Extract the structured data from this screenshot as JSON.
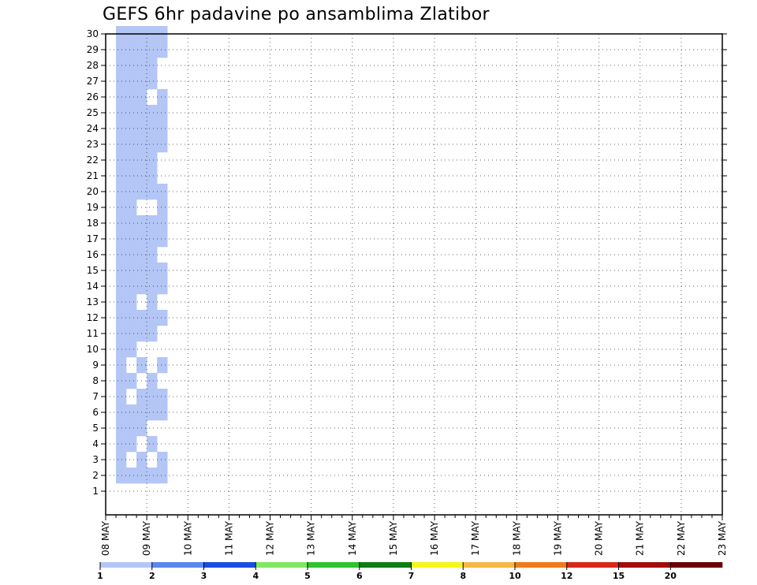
{
  "chart_data": {
    "type": "heatmap",
    "title": "GEFS 6hr padavine po ansamblima Zlatibor",
    "xlabel": "",
    "ylabel": "",
    "x_tick_labels": [
      "08 MAY",
      "09 MAY",
      "10 MAY",
      "11 MAY",
      "12 MAY",
      "13 MAY",
      "14 MAY",
      "15 MAY",
      "16 MAY",
      "17 MAY",
      "18 MAY",
      "19 MAY",
      "20 MAY",
      "21 MAY",
      "22 MAY",
      "23 MAY"
    ],
    "x_range_days": [
      0,
      15
    ],
    "steps_per_day": 4,
    "y_tick_labels": [
      1,
      2,
      3,
      4,
      5,
      6,
      7,
      8,
      9,
      10,
      11,
      12,
      13,
      14,
      15,
      16,
      17,
      18,
      19,
      20,
      21,
      22,
      23,
      24,
      25,
      26,
      27,
      28,
      29,
      30
    ],
    "grid": true,
    "legend_placement": "bottom",
    "color_levels": [
      1,
      2,
      3,
      4,
      5,
      6,
      7,
      8,
      10,
      12,
      15,
      20
    ],
    "colorbar_labels": [
      "1",
      "2",
      "3",
      "4",
      "5",
      "6",
      "7",
      "8",
      "10",
      "12",
      "15",
      "20"
    ],
    "colors": [
      "#b3c6f5",
      "#5b87ee",
      "#1a4de0",
      "#7fe860",
      "#2dc42d",
      "#0f7d14",
      "#f6f618",
      "#f6b845",
      "#f07b18",
      "#d82818",
      "#a00c0c",
      "#6a0000"
    ],
    "cells": [
      [
        0,
        1,
        2
      ],
      [
        0,
        1,
        3
      ],
      [
        0,
        1,
        4
      ],
      [
        0,
        1,
        5
      ],
      [
        0,
        1,
        6
      ],
      [
        0,
        1,
        7
      ],
      [
        0,
        1,
        8
      ],
      [
        0,
        1,
        9
      ],
      [
        0,
        1,
        10
      ],
      [
        0,
        1,
        11
      ],
      [
        0,
        1,
        12
      ],
      [
        0,
        1,
        13
      ],
      [
        0,
        1,
        14
      ],
      [
        0,
        1,
        15
      ],
      [
        0,
        1,
        16
      ],
      [
        0,
        1,
        17
      ],
      [
        0,
        1,
        18
      ],
      [
        0,
        1,
        19
      ],
      [
        0,
        1,
        20
      ],
      [
        0,
        1,
        21
      ],
      [
        0,
        1,
        22
      ],
      [
        0,
        1,
        23
      ],
      [
        0,
        1,
        24
      ],
      [
        0,
        1,
        25
      ],
      [
        0,
        1,
        26
      ],
      [
        0,
        1,
        27
      ],
      [
        0,
        1,
        28
      ],
      [
        0,
        1,
        29
      ],
      [
        0,
        1,
        30
      ],
      [
        0,
        2,
        2
      ],
      [
        0,
        2,
        4
      ],
      [
        0,
        2,
        5
      ],
      [
        0,
        2,
        6
      ],
      [
        0,
        2,
        8
      ],
      [
        0,
        2,
        10
      ],
      [
        0,
        2,
        11
      ],
      [
        0,
        2,
        12
      ],
      [
        0,
        2,
        13
      ],
      [
        0,
        2,
        14
      ],
      [
        0,
        2,
        15
      ],
      [
        0,
        2,
        16
      ],
      [
        0,
        2,
        17
      ],
      [
        0,
        2,
        18
      ],
      [
        0,
        2,
        19
      ],
      [
        0,
        2,
        20
      ],
      [
        0,
        2,
        21
      ],
      [
        0,
        2,
        22
      ],
      [
        0,
        2,
        23
      ],
      [
        0,
        2,
        24
      ],
      [
        0,
        2,
        25
      ],
      [
        0,
        2,
        26
      ],
      [
        0,
        2,
        27
      ],
      [
        0,
        2,
        28
      ],
      [
        0,
        2,
        29
      ],
      [
        0,
        2,
        30
      ],
      [
        0,
        3,
        2
      ],
      [
        0,
        3,
        3
      ],
      [
        0,
        3,
        5
      ],
      [
        0,
        3,
        6
      ],
      [
        0,
        3,
        7
      ],
      [
        0,
        3,
        9
      ],
      [
        0,
        3,
        11
      ],
      [
        0,
        3,
        12
      ],
      [
        0,
        3,
        14
      ],
      [
        0,
        3,
        15
      ],
      [
        0,
        3,
        16
      ],
      [
        0,
        3,
        17
      ],
      [
        0,
        3,
        18
      ],
      [
        0,
        3,
        20
      ],
      [
        0,
        3,
        21
      ],
      [
        0,
        3,
        22
      ],
      [
        0,
        3,
        23
      ],
      [
        0,
        3,
        24
      ],
      [
        0,
        3,
        25
      ],
      [
        0,
        3,
        26
      ],
      [
        0,
        3,
        27
      ],
      [
        0,
        3,
        28
      ],
      [
        0,
        3,
        29
      ],
      [
        0,
        3,
        30
      ],
      [
        0,
        4,
        2
      ],
      [
        0,
        4,
        4
      ],
      [
        0,
        4,
        6
      ],
      [
        0,
        4,
        7
      ],
      [
        0,
        4,
        8
      ],
      [
        0,
        4,
        11
      ],
      [
        0,
        4,
        12
      ],
      [
        0,
        4,
        13
      ],
      [
        0,
        4,
        14
      ],
      [
        0,
        4,
        15
      ],
      [
        0,
        4,
        16
      ],
      [
        0,
        4,
        17
      ],
      [
        0,
        4,
        18
      ],
      [
        0,
        4,
        20
      ],
      [
        0,
        4,
        21
      ],
      [
        0,
        4,
        22
      ],
      [
        0,
        4,
        23
      ],
      [
        0,
        4,
        24
      ],
      [
        0,
        4,
        25
      ],
      [
        0,
        4,
        27
      ],
      [
        0,
        4,
        28
      ],
      [
        0,
        4,
        29
      ],
      [
        0,
        4,
        30
      ],
      [
        0,
        5,
        2
      ],
      [
        0,
        5,
        3
      ],
      [
        0,
        5,
        6
      ],
      [
        0,
        5,
        7
      ],
      [
        0,
        5,
        9
      ],
      [
        0,
        5,
        12
      ],
      [
        0,
        5,
        14
      ],
      [
        0,
        5,
        15
      ],
      [
        0,
        5,
        17
      ],
      [
        0,
        5,
        18
      ],
      [
        0,
        5,
        19
      ],
      [
        0,
        5,
        20
      ],
      [
        0,
        5,
        23
      ],
      [
        0,
        5,
        24
      ],
      [
        0,
        5,
        25
      ],
      [
        0,
        5,
        26
      ],
      [
        0,
        5,
        29
      ],
      [
        0,
        5,
        30
      ]
    ]
  }
}
